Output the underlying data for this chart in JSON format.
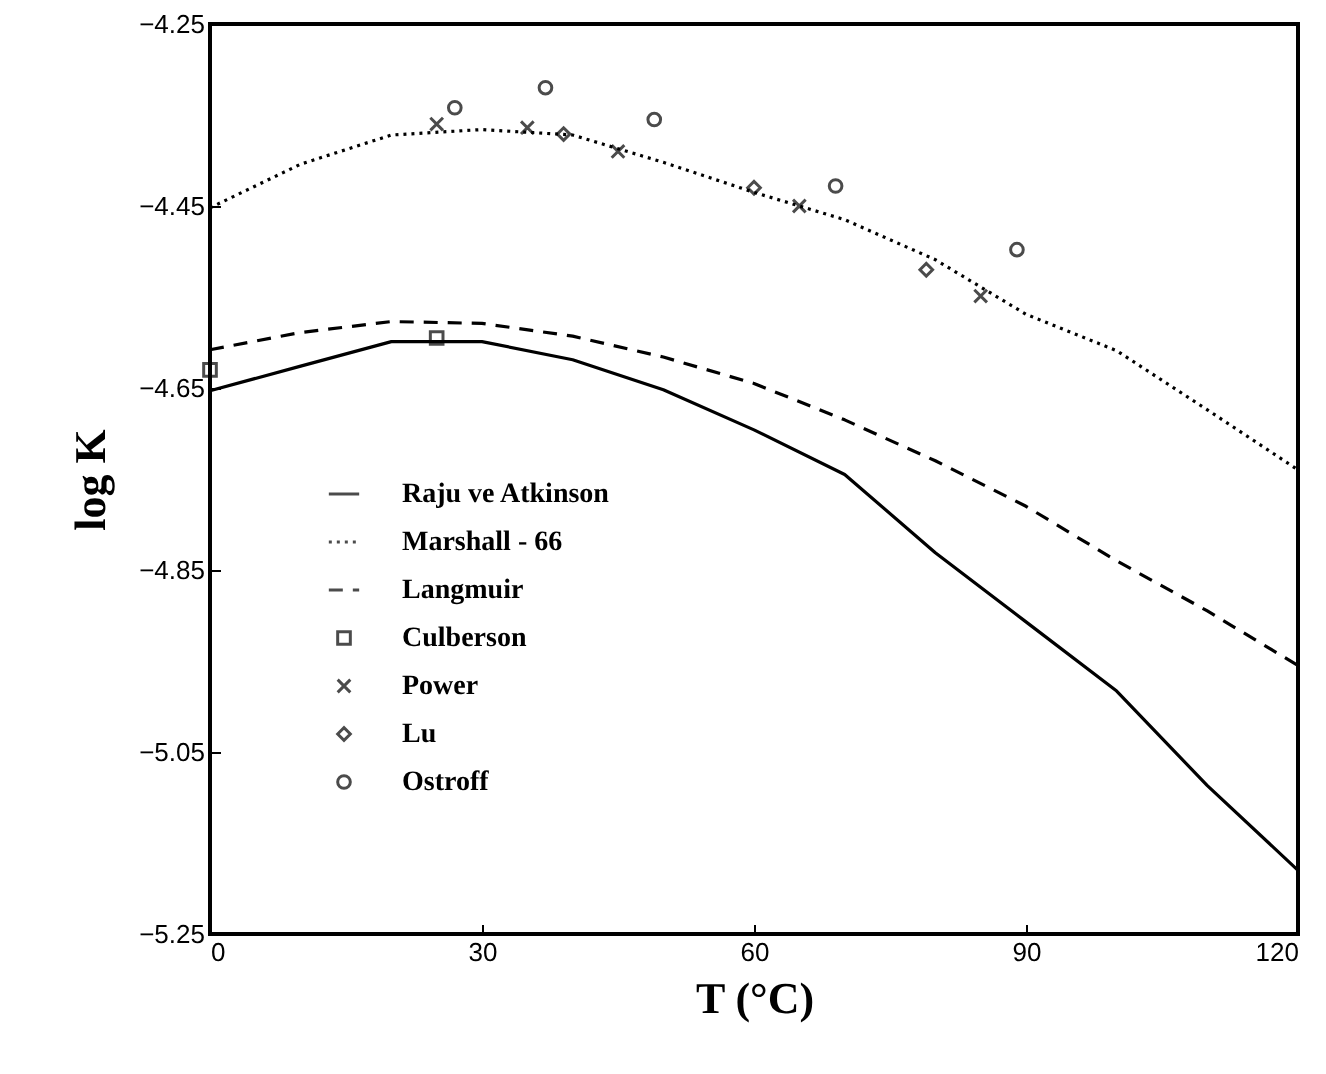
{
  "chart_data": {
    "type": "line",
    "xlabel": "T (°C)",
    "ylabel": "log K",
    "xlim": [
      0,
      120
    ],
    "xticks": [
      0,
      30,
      60,
      90,
      120
    ],
    "ylim": [
      -5.25,
      -4.25
    ],
    "yticks": [
      -5.25,
      -5.05,
      -4.85,
      -4.65,
      -4.45,
      -4.25
    ],
    "grid": false,
    "legend": "left",
    "series": [
      {
        "name": "Raju ve Atkinson",
        "type": "line",
        "line_style": "solid",
        "color": "#000000",
        "x": [
          0,
          10,
          20,
          30,
          40,
          50,
          60,
          70,
          80,
          90,
          100,
          110,
          120
        ],
        "values": [
          -4.653,
          -4.626,
          -4.599,
          -4.599,
          -4.619,
          -4.652,
          -4.696,
          -4.745,
          -4.831,
          -4.907,
          -4.983,
          -5.087,
          -5.18
        ]
      },
      {
        "name": "Marshall - 66",
        "type": "line",
        "line_style": "dotted",
        "color": "#000000",
        "x": [
          0,
          10,
          20,
          30,
          40,
          50,
          60,
          70,
          80,
          90,
          100,
          110,
          120
        ],
        "values": [
          -4.452,
          -4.404,
          -4.372,
          -4.366,
          -4.372,
          -4.402,
          -4.435,
          -4.465,
          -4.509,
          -4.569,
          -4.609,
          -4.674,
          -4.74
        ]
      },
      {
        "name": "Langmuir",
        "type": "line",
        "line_style": "dashed",
        "color": "#000000",
        "x": [
          0,
          10,
          20,
          30,
          40,
          50,
          60,
          70,
          80,
          90,
          100,
          110,
          120
        ],
        "values": [
          -4.608,
          -4.589,
          -4.577,
          -4.579,
          -4.593,
          -4.616,
          -4.645,
          -4.685,
          -4.73,
          -4.78,
          -4.84,
          -4.895,
          -4.955
        ]
      },
      {
        "name": "Culberson",
        "type": "scatter",
        "marker": "square",
        "color": "#000000",
        "x": [
          0,
          25
        ],
        "values": [
          -4.63,
          -4.595
        ]
      },
      {
        "name": "Power",
        "type": "scatter",
        "marker": "cross",
        "color": "#000000",
        "x": [
          25,
          35,
          45,
          65,
          85
        ],
        "values": [
          -4.36,
          -4.364,
          -4.39,
          -4.45,
          -4.549
        ]
      },
      {
        "name": "Lu",
        "type": "scatter",
        "marker": "diamond",
        "color": "#000000",
        "x": [
          39,
          60,
          79
        ],
        "values": [
          -4.371,
          -4.43,
          -4.52
        ]
      },
      {
        "name": "Ostroff",
        "type": "scatter",
        "marker": "circle",
        "color": "#000000",
        "x": [
          27,
          37,
          49,
          69,
          89
        ],
        "values": [
          -4.342,
          -4.32,
          -4.355,
          -4.428,
          -4.498
        ]
      }
    ]
  }
}
